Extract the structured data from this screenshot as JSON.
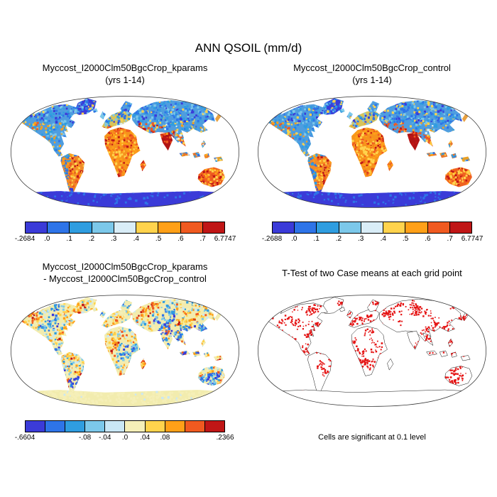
{
  "title": "ANN QSOIL (mm/d)",
  "panels": [
    {
      "id": "kparams",
      "title_line1": "Myccost_I2000Clm50BgcCrop_kparams",
      "title_line2": "(yrs 1-14)",
      "colorbar": {
        "min_label": "-.2684",
        "max_label": "6.7747",
        "colors": [
          "#3b3bd8",
          "#2e74e8",
          "#2f9de0",
          "#7cc8ea",
          "#d9edf7",
          "#ffd34d",
          "#ffa018",
          "#f05a20",
          "#c01616"
        ],
        "ticks": [
          {
            "label": "-.2684",
            "pos": 0
          },
          {
            "label": ".0",
            "pos": 0.111
          },
          {
            "label": ".1",
            "pos": 0.222
          },
          {
            "label": ".2",
            "pos": 0.333
          },
          {
            "label": ".3",
            "pos": 0.444
          },
          {
            "label": ".4",
            "pos": 0.556
          },
          {
            "label": ".5",
            "pos": 0.667
          },
          {
            "label": ".6",
            "pos": 0.778
          },
          {
            "label": ".7",
            "pos": 0.889
          },
          {
            "label": "6.7747",
            "pos": 1
          }
        ]
      }
    },
    {
      "id": "control",
      "title_line1": "Myccost_I2000Clm50BgcCrop_control",
      "title_line2": "(yrs 1-14)",
      "colorbar": {
        "min_label": "-.2688",
        "max_label": "6.7747",
        "colors": [
          "#3b3bd8",
          "#2e74e8",
          "#2f9de0",
          "#7cc8ea",
          "#d9edf7",
          "#ffd34d",
          "#ffa018",
          "#f05a20",
          "#c01616"
        ],
        "ticks": [
          {
            "label": "-.2688",
            "pos": 0
          },
          {
            "label": ".0",
            "pos": 0.111
          },
          {
            "label": ".1",
            "pos": 0.222
          },
          {
            "label": ".2",
            "pos": 0.333
          },
          {
            "label": ".3",
            "pos": 0.444
          },
          {
            "label": ".4",
            "pos": 0.556
          },
          {
            "label": ".5",
            "pos": 0.667
          },
          {
            "label": ".6",
            "pos": 0.778
          },
          {
            "label": ".7",
            "pos": 0.889
          },
          {
            "label": "6.7747",
            "pos": 1
          }
        ]
      }
    },
    {
      "id": "diff",
      "title_line1": "Myccost_I2000Clm50BgcCrop_kparams",
      "title_line2": "- Myccost_I2000Clm50BgcCrop_control",
      "colorbar": {
        "min_label": "-.6604",
        "max_label": ".2366",
        "colors": [
          "#3b3bd8",
          "#2e74e8",
          "#2f9de0",
          "#7cc8ea",
          "#c9e7f5",
          "#f5efb8",
          "#ffd34d",
          "#ffa018",
          "#f05a20",
          "#c01616"
        ],
        "ticks": [
          {
            "label": "-.6604",
            "pos": 0
          },
          {
            "label": "-.08",
            "pos": 0.3
          },
          {
            "label": "-.04",
            "pos": 0.4
          },
          {
            "label": ".0",
            "pos": 0.5
          },
          {
            "label": ".04",
            "pos": 0.6
          },
          {
            "label": ".08",
            "pos": 0.7
          },
          {
            "label": ".2366",
            "pos": 1
          }
        ]
      }
    },
    {
      "id": "ttest",
      "title_line1": "T-Test of two Case means at each grid point",
      "caption": "Cells are significant at 0.1 level",
      "significant_color": "#e51414"
    }
  ],
  "chart_data": [
    {
      "type": "heatmap",
      "panel": "top-left",
      "title": "Myccost_I2000Clm50BgcCrop_kparams (yrs 1-14)",
      "variable": "ANN QSOIL",
      "units": "mm/d",
      "projection": "Robinson world map",
      "value_min": -0.2684,
      "value_max": 6.7747,
      "contour_levels": [
        0,
        0.1,
        0.2,
        0.3,
        0.4,
        0.5,
        0.6,
        0.7
      ],
      "palette": [
        "#3b3bd8",
        "#2e74e8",
        "#2f9de0",
        "#7cc8ea",
        "#d9edf7",
        "#ffd34d",
        "#ffa018",
        "#f05a20",
        "#c01616"
      ],
      "description": "Annual soil evaporation; high (orange/red) over Sahara, Sahel, Middle East, India, Australia, western Americas; low (blue) over high northern latitudes, Greenland and Antarctica"
    },
    {
      "type": "heatmap",
      "panel": "top-right",
      "title": "Myccost_I2000Clm50BgcCrop_control (yrs 1-14)",
      "variable": "ANN QSOIL",
      "units": "mm/d",
      "projection": "Robinson world map",
      "value_min": -0.2688,
      "value_max": 6.7747,
      "contour_levels": [
        0,
        0.1,
        0.2,
        0.3,
        0.4,
        0.5,
        0.6,
        0.7
      ],
      "palette": [
        "#3b3bd8",
        "#2e74e8",
        "#2f9de0",
        "#7cc8ea",
        "#d9edf7",
        "#ffd34d",
        "#ffa018",
        "#f05a20",
        "#c01616"
      ],
      "description": "Control case; spatial pattern nearly identical to kparams case"
    },
    {
      "type": "heatmap",
      "panel": "bottom-left",
      "title": "Myccost_I2000Clm50BgcCrop_kparams - Myccost_I2000Clm50BgcCrop_control",
      "variable": "ANN QSOIL difference",
      "units": "mm/d",
      "projection": "Robinson world map",
      "value_min": -0.6604,
      "value_max": 0.2366,
      "labeled_levels": [
        -0.08,
        -0.04,
        0,
        0.04,
        0.08
      ],
      "palette": [
        "#3b3bd8",
        "#2e74e8",
        "#2f9de0",
        "#7cc8ea",
        "#c9e7f5",
        "#f5efb8",
        "#ffd34d",
        "#ffa018",
        "#f05a20",
        "#c01616"
      ],
      "description": "Difference map; mostly near-zero (pale yellow) land with scattered negative (blue) and positive (orange/red) patches, strong blues over southern South America and South/Southeast Asia"
    },
    {
      "type": "map",
      "panel": "bottom-right",
      "title": "T-Test of two Case means at each grid point",
      "note": "Cells are significant at 0.1 level",
      "marker_color": "#e51414",
      "description": "White continents with black coastlines; red cells mark grid points where the two case means differ significantly at the 0.1 level"
    }
  ]
}
